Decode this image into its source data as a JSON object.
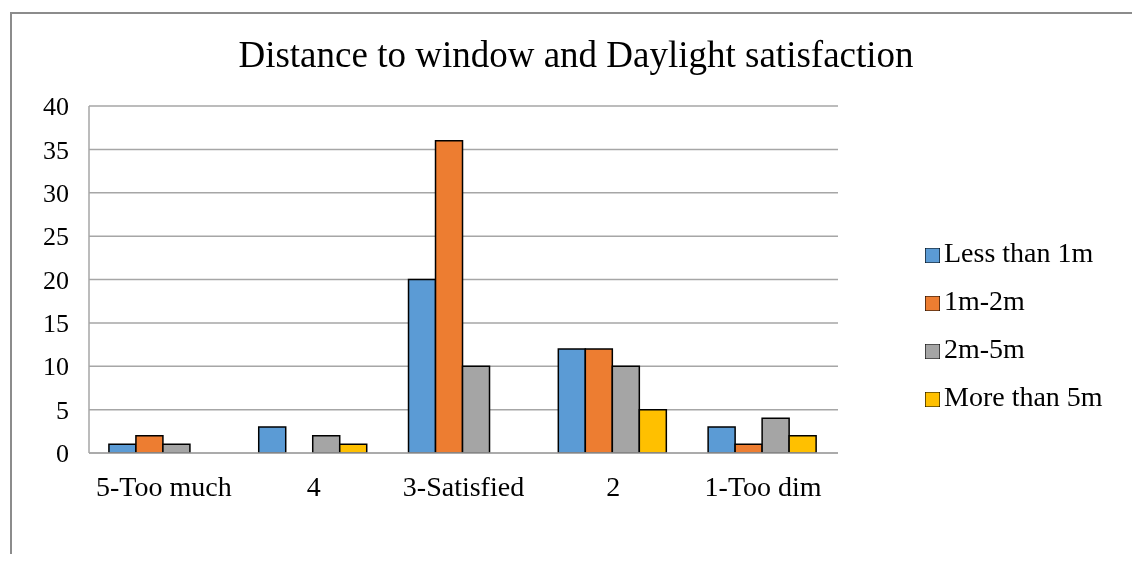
{
  "chart_data": {
    "type": "bar",
    "title": "Distance to window and Daylight satisfaction",
    "categories": [
      "5-Too much",
      "4",
      "3-Satisfied",
      "2",
      "1-Too dim"
    ],
    "series": [
      {
        "name": "Less than 1m",
        "color": "#5b9bd5",
        "values": [
          1,
          3,
          20,
          12,
          3
        ]
      },
      {
        "name": "1m-2m",
        "color": "#ed7d31",
        "values": [
          2,
          0,
          36,
          12,
          1
        ]
      },
      {
        "name": "2m-5m",
        "color": "#a5a5a5",
        "values": [
          1,
          2,
          10,
          10,
          4
        ]
      },
      {
        "name": "More than 5m",
        "color": "#ffc000",
        "values": [
          0,
          1,
          0,
          5,
          2
        ]
      }
    ],
    "ylim": [
      0,
      40
    ],
    "yticks": [
      0,
      5,
      10,
      15,
      20,
      25,
      30,
      35,
      40
    ],
    "grid": "y",
    "legend": "right"
  }
}
